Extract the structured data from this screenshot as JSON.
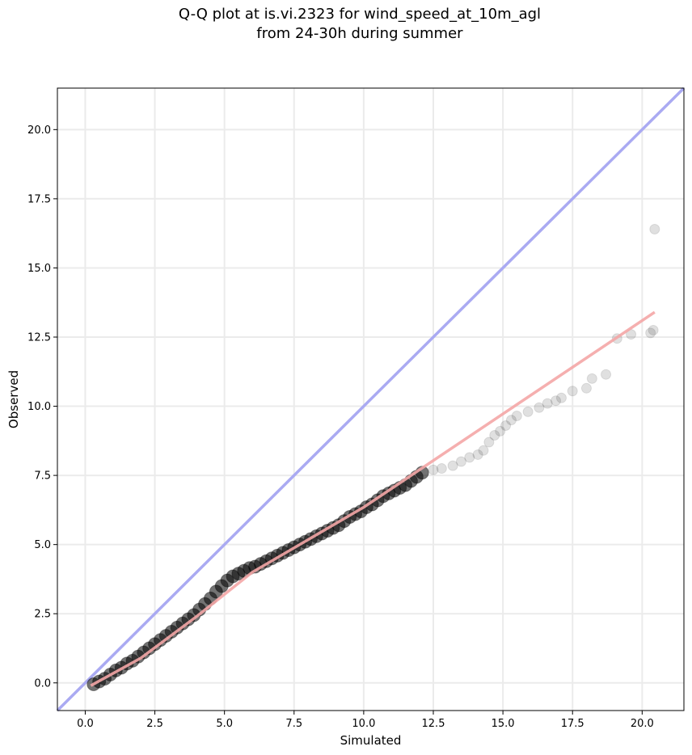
{
  "chart_data": {
    "type": "scatter",
    "title": "Q-Q plot at is.vi.2323 for wind_speed_at_10m_agl",
    "subtitle": "from 24-30h during summer",
    "xlabel": "Simulated",
    "ylabel": "Observed",
    "xlim": [
      -1.0,
      21.5
    ],
    "ylim": [
      -1.0,
      21.5
    ],
    "x_ticks": [
      "0.0",
      "2.5",
      "5.0",
      "7.5",
      "10.0",
      "12.5",
      "15.0",
      "17.5",
      "20.0"
    ],
    "y_ticks": [
      "0.0",
      "2.5",
      "5.0",
      "7.5",
      "10.0",
      "12.5",
      "15.0",
      "17.5",
      "20.0"
    ],
    "grid": true,
    "colors": {
      "points": "#000000",
      "identity_line": "#aaaaf2",
      "fit_line": "#f4a6a6",
      "grid": "#ebebeb"
    },
    "series": [
      {
        "kind": "points",
        "x": [
          0.3,
          0.5,
          0.7,
          0.9,
          1.1,
          1.3,
          1.5,
          1.7,
          1.9,
          2.1,
          2.3,
          2.5,
          2.7,
          2.9,
          3.1,
          3.3,
          3.5,
          3.7,
          3.9,
          4.1,
          4.3,
          4.5,
          4.7,
          4.9,
          5.1,
          5.3,
          5.5,
          5.7,
          5.9,
          6.1,
          6.3,
          6.5,
          6.7,
          6.9,
          7.1,
          7.3,
          7.5,
          7.7,
          7.9,
          8.1,
          8.3,
          8.5,
          8.7,
          8.9,
          9.1,
          9.3,
          9.5,
          9.7,
          9.9,
          10.1,
          10.3,
          10.5,
          10.7,
          10.9,
          11.1,
          11.3,
          11.5,
          11.7,
          11.9,
          12.1,
          12.5,
          12.8,
          13.2,
          13.5,
          13.8,
          14.1,
          14.3,
          14.5,
          14.7,
          14.9,
          15.1,
          15.3,
          15.5,
          15.9,
          16.3,
          16.6,
          16.9,
          17.1,
          17.5,
          18.0,
          18.2,
          18.7,
          19.1,
          19.6,
          20.3,
          20.4,
          20.45
        ],
        "y": [
          -0.05,
          0.05,
          0.15,
          0.3,
          0.45,
          0.55,
          0.7,
          0.8,
          0.95,
          1.1,
          1.25,
          1.4,
          1.55,
          1.7,
          1.85,
          2.0,
          2.15,
          2.3,
          2.45,
          2.65,
          2.85,
          3.05,
          3.3,
          3.5,
          3.7,
          3.85,
          3.95,
          4.05,
          4.15,
          4.2,
          4.3,
          4.4,
          4.5,
          4.6,
          4.7,
          4.8,
          4.9,
          5.0,
          5.1,
          5.2,
          5.3,
          5.4,
          5.5,
          5.6,
          5.7,
          5.85,
          6.0,
          6.1,
          6.2,
          6.35,
          6.45,
          6.6,
          6.75,
          6.85,
          6.95,
          7.05,
          7.15,
          7.3,
          7.45,
          7.6,
          7.7,
          7.75,
          7.85,
          8.0,
          8.15,
          8.25,
          8.4,
          8.7,
          8.95,
          9.1,
          9.3,
          9.5,
          9.65,
          9.8,
          9.95,
          10.1,
          10.2,
          10.3,
          10.55,
          10.65,
          11.0,
          11.15,
          12.45,
          12.6,
          12.65,
          12.75,
          16.4
        ]
      },
      {
        "kind": "fit-line",
        "x": [
          0.2,
          2.0,
          4.0,
          6.0,
          10.0,
          20.45
        ],
        "y": [
          -0.1,
          0.9,
          2.4,
          4.0,
          6.35,
          13.4
        ]
      },
      {
        "kind": "identity-line",
        "x": [
          -1.0,
          21.5
        ],
        "y": [
          -1.0,
          21.5
        ]
      }
    ]
  }
}
